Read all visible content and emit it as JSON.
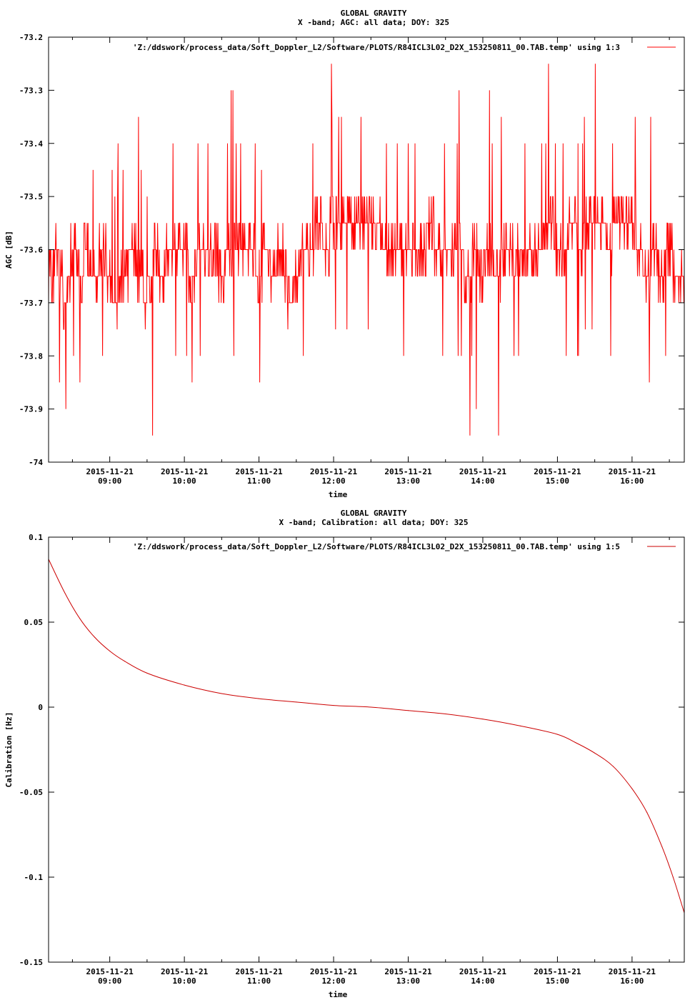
{
  "chart_data": [
    {
      "type": "line",
      "title": "GLOBAL GRAVITY",
      "subtitle": "X -band; AGC: all data; DOY: 325",
      "xlabel": "time",
      "ylabel": "AGC [dB]",
      "ylim": [
        -74,
        -73.2
      ],
      "yticks": [
        "-73.2",
        "-73.3",
        "-73.4",
        "-73.5",
        "-73.6",
        "-73.7",
        "-73.8",
        "-73.9",
        "-74"
      ],
      "ytick_values": [
        -73.2,
        -73.3,
        -73.4,
        -73.5,
        -73.6,
        -73.7,
        -73.8,
        -73.9,
        -74
      ],
      "xlim_hours": [
        8.18,
        16.7
      ],
      "xtick_hours": [
        9,
        10,
        11,
        12,
        13,
        14,
        15,
        16
      ],
      "xtick_dates": [
        "2015-11-21",
        "2015-11-21",
        "2015-11-21",
        "2015-11-21",
        "2015-11-21",
        "2015-11-21",
        "2015-11-21",
        "2015-11-21"
      ],
      "xtick_times": [
        "09:00",
        "10:00",
        "11:00",
        "12:00",
        "13:00",
        "14:00",
        "15:00",
        "16:00"
      ],
      "grid": false,
      "legend": "top-right",
      "series": [
        {
          "name": "'Z:/ddswork/process_data/Soft_Doppler_L2/Software/PLOTS/R84ICL3L02_D2X_153250811_00.TAB.temp' using 1:3",
          "color": "#ff0000",
          "x_hours": [
            8.2,
            8.3,
            8.4,
            8.5,
            8.6,
            8.7,
            8.8,
            8.9,
            9.0,
            9.1,
            9.2,
            9.3,
            9.4,
            9.5,
            9.6,
            9.7,
            9.8,
            9.9,
            10.0,
            10.1,
            10.2,
            10.3,
            10.4,
            10.5,
            10.6,
            10.7,
            10.8,
            10.9,
            11.0,
            11.1,
            11.2,
            11.3,
            11.4,
            11.5,
            11.6,
            11.7,
            11.8,
            11.9,
            12.0,
            12.1,
            12.2,
            12.3,
            12.4,
            12.5,
            12.6,
            12.7,
            12.8,
            12.9,
            13.0,
            13.1,
            13.2,
            13.3,
            13.4,
            13.5,
            13.6,
            13.7,
            13.8,
            13.9,
            14.0,
            14.1,
            14.2,
            14.3,
            14.4,
            14.5,
            14.6,
            14.7,
            14.8,
            14.9,
            15.0,
            15.1,
            15.2,
            15.3,
            15.4,
            15.5,
            15.6,
            15.7,
            15.8,
            15.9,
            16.0,
            16.1,
            16.2,
            16.3,
            16.4,
            16.5,
            16.6,
            16.7
          ],
          "values": [
            -73.65,
            -73.6,
            -73.7,
            -73.6,
            -73.65,
            -73.6,
            -73.65,
            -73.6,
            -73.65,
            -73.7,
            -73.65,
            -73.6,
            -73.65,
            -73.7,
            -73.6,
            -73.65,
            -73.6,
            -73.6,
            -73.6,
            -73.65,
            -73.6,
            -73.6,
            -73.6,
            -73.65,
            -73.6,
            -73.6,
            -73.6,
            -73.6,
            -73.65,
            -73.6,
            -73.65,
            -73.6,
            -73.7,
            -73.65,
            -73.6,
            -73.6,
            -73.55,
            -73.6,
            -73.55,
            -73.55,
            -73.55,
            -73.55,
            -73.55,
            -73.55,
            -73.55,
            -73.6,
            -73.6,
            -73.6,
            -73.6,
            -73.6,
            -73.6,
            -73.55,
            -73.6,
            -73.6,
            -73.6,
            -73.6,
            -73.65,
            -73.6,
            -73.65,
            -73.6,
            -73.65,
            -73.6,
            -73.6,
            -73.6,
            -73.6,
            -73.6,
            -73.6,
            -73.55,
            -73.6,
            -73.6,
            -73.55,
            -73.6,
            -73.55,
            -73.55,
            -73.55,
            -73.6,
            -73.55,
            -73.55,
            -73.55,
            -73.6,
            -73.65,
            -73.6,
            -73.65,
            -73.6,
            -73.65,
            -73.65
          ]
        }
      ]
    },
    {
      "type": "line",
      "title": "GLOBAL GRAVITY",
      "subtitle": "X -band; Calibration: all data; DOY: 325",
      "xlabel": "time",
      "ylabel": "Calibration [Hz]",
      "ylim": [
        -0.15,
        0.1
      ],
      "yticks": [
        "0.1",
        "0.05",
        "0",
        "-0.05",
        "-0.1",
        "-0.15"
      ],
      "ytick_values": [
        0.1,
        0.05,
        0,
        -0.05,
        -0.1,
        -0.15
      ],
      "xlim_hours": [
        8.18,
        16.7
      ],
      "xtick_hours": [
        9,
        10,
        11,
        12,
        13,
        14,
        15,
        16
      ],
      "xtick_dates": [
        "2015-11-21",
        "2015-11-21",
        "2015-11-21",
        "2015-11-21",
        "2015-11-21",
        "2015-11-21",
        "2015-11-21",
        "2015-11-21"
      ],
      "xtick_times": [
        "09:00",
        "10:00",
        "11:00",
        "12:00",
        "13:00",
        "14:00",
        "15:00",
        "16:00"
      ],
      "grid": false,
      "legend": "top-right",
      "series": [
        {
          "name": "'Z:/ddswork/process_data/Soft_Doppler_L2/Software/PLOTS/R84ICL3L02_D2X_153250811_00.TAB.temp' using 1:5",
          "color": "#cc0000",
          "x_hours": [
            8.18,
            8.4,
            8.6,
            8.8,
            9.0,
            9.2,
            9.5,
            10.0,
            10.5,
            11.0,
            11.5,
            12.0,
            12.5,
            13.0,
            13.5,
            14.0,
            14.5,
            15.0,
            15.25,
            15.5,
            15.75,
            16.0,
            16.2,
            16.4,
            16.55,
            16.7
          ],
          "values": [
            0.087,
            0.067,
            0.052,
            0.041,
            0.033,
            0.027,
            0.02,
            0.013,
            0.008,
            0.005,
            0.003,
            0.001,
            0.0,
            -0.002,
            -0.004,
            -0.007,
            -0.011,
            -0.016,
            -0.021,
            -0.027,
            -0.035,
            -0.048,
            -0.062,
            -0.082,
            -0.1,
            -0.121
          ]
        }
      ]
    }
  ]
}
